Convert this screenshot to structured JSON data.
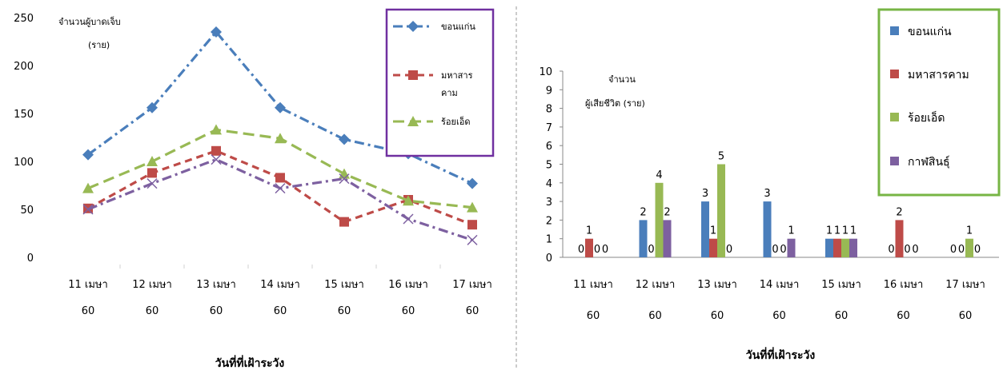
{
  "chart_data": [
    {
      "type": "line",
      "categories": [
        [
          "11 เมษา",
          "60"
        ],
        [
          "12 เมษา",
          "60"
        ],
        [
          "13 เมษา",
          "60"
        ],
        [
          "14 เมษา",
          "60"
        ],
        [
          "15 เมษา",
          "60"
        ],
        [
          "16 เมษา",
          "60"
        ],
        [
          "17 เมษา",
          "60"
        ]
      ],
      "ylabel": [
        "จำนวนผู้บาดเจ็บ",
        "(ราย)"
      ],
      "xlabel": "วันที่ที่เฝ้าระวัง",
      "ylim": [
        0,
        250
      ],
      "yticks": [
        0,
        50,
        100,
        150,
        200,
        250
      ],
      "legend_position": "top-right",
      "series": [
        {
          "name": [
            "ขอนแก่น"
          ],
          "values": [
            107,
            156,
            235,
            156,
            123,
            108,
            77
          ],
          "color": "#4a7ebb",
          "marker": "diamond",
          "dash": "dashdot",
          "in_legend": true
        },
        {
          "name": [
            "มหาสาร",
            "คาม"
          ],
          "values": [
            51,
            88,
            111,
            83,
            37,
            60,
            34
          ],
          "color": "#be4b48",
          "marker": "square",
          "dash": "dash",
          "in_legend": true
        },
        {
          "name": [
            "ร้อยเอ็ด"
          ],
          "values": [
            72,
            100,
            133,
            124,
            87,
            59,
            52
          ],
          "color": "#98b954",
          "marker": "triangle",
          "dash": "longdash",
          "in_legend": true
        },
        {
          "name": [],
          "values": [
            50,
            77,
            102,
            72,
            82,
            40,
            18
          ],
          "color": "#7d60a0",
          "marker": "x",
          "dash": "dashdot",
          "in_legend": false
        }
      ]
    },
    {
      "type": "bar",
      "categories": [
        [
          "11 เมษา",
          "60"
        ],
        [
          "12 เมษา",
          "60"
        ],
        [
          "13 เมษา",
          "60"
        ],
        [
          "14 เมษา",
          "60"
        ],
        [
          "15 เมษา",
          "60"
        ],
        [
          "16 เมษา",
          "60"
        ],
        [
          "17 เมษา",
          "60"
        ]
      ],
      "ylabel": [
        "จำนวน",
        "ผู้เสียชีวิต (ราย)"
      ],
      "xlabel": "วันที่ที่เฝ้าระวัง",
      "ylim": [
        0,
        10
      ],
      "yticks": [
        0,
        1,
        2,
        3,
        4,
        5,
        6,
        7,
        8,
        9,
        10
      ],
      "legend_position": "top-right",
      "series": [
        {
          "name": "ขอนแก่น",
          "values": [
            0,
            2,
            3,
            3,
            1,
            0,
            0
          ],
          "color": "#4a7ebb"
        },
        {
          "name": "มหาสารคาม",
          "values": [
            1,
            0,
            1,
            0,
            1,
            2,
            0
          ],
          "color": "#be4b48"
        },
        {
          "name": "ร้อยเอ็ด",
          "values": [
            0,
            4,
            5,
            0,
            1,
            0,
            1
          ],
          "color": "#98b954"
        },
        {
          "name": "กาฬสินธุ์",
          "values": [
            0,
            2,
            0,
            1,
            1,
            0,
            0
          ],
          "color": "#7d60a0"
        }
      ]
    }
  ],
  "colors": {
    "line_legend_border": "#7030a0",
    "bar_legend_border": "#77b545",
    "divider": "#999999"
  }
}
